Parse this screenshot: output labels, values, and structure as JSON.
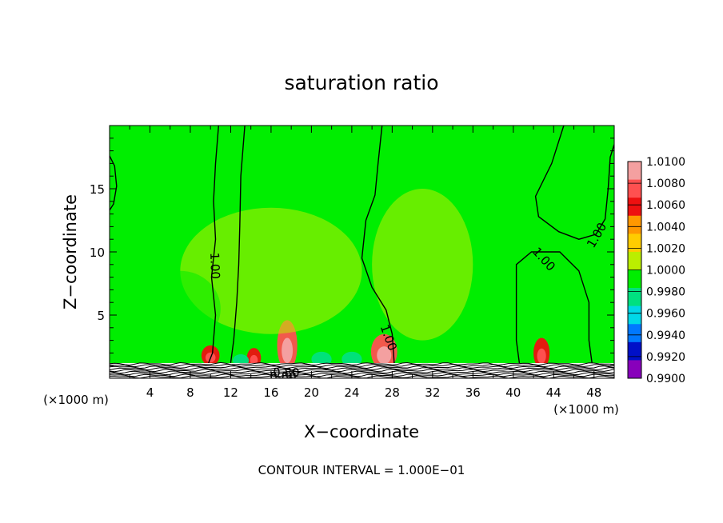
{
  "chart_data": {
    "type": "heatmap",
    "title": "saturation ratio",
    "xlabel": "X−coordinate",
    "ylabel": "Z−coordinate",
    "x_unit_left": "(×1000 m)",
    "x_unit_right": "(×1000 m)",
    "xlim": [
      0,
      50
    ],
    "ylim": [
      0,
      20
    ],
    "xticks": [
      4,
      8,
      12,
      16,
      20,
      24,
      28,
      32,
      36,
      40,
      44,
      48
    ],
    "yticks": [
      5,
      10,
      15
    ],
    "footer": "CONTOUR INTERVAL = 1.000E−01",
    "colorbar": {
      "levels": [
        "1.0100",
        "1.0080",
        "1.0060",
        "1.0040",
        "1.0020",
        "1.0000",
        "0.9980",
        "0.9960",
        "0.9940",
        "0.9920",
        "0.9900"
      ],
      "colors": [
        "#f4a0a0",
        "#ff5050",
        "#ee1010",
        "#ff9800",
        "#ffcc00",
        "#bbee00",
        "#00ee00",
        "#00e080",
        "#00d8e8",
        "#0078ff",
        "#0010c8",
        "#8800bb"
      ]
    },
    "contour_labels": [
      {
        "text": "1.00",
        "x": 10.4,
        "z": 8.9,
        "angle": 88
      },
      {
        "text": "1.00",
        "x": 27.6,
        "z": 3.2,
        "angle": 70
      },
      {
        "text": "1.00",
        "x": 43.0,
        "z": 9.4,
        "angle": 48
      },
      {
        "text": "1.00",
        "x": 48.3,
        "z": 11.3,
        "angle": -60
      },
      {
        "text": "0.80",
        "x": 17.5,
        "z": 0.4,
        "angle": 0
      },
      {
        "text": "0.80",
        "x": 17.2,
        "z": 0.1,
        "angle": 0
      }
    ],
    "contours": [
      [
        [
          10.8,
          20
        ],
        [
          10.5,
          17
        ],
        [
          10.3,
          14
        ],
        [
          10.5,
          11
        ],
        [
          10.1,
          8
        ],
        [
          10.5,
          5
        ],
        [
          10.2,
          2
        ],
        [
          9.8,
          1.2
        ]
      ],
      [
        [
          12.0,
          1.2
        ],
        [
          12.3,
          3
        ],
        [
          12.6,
          6
        ],
        [
          12.8,
          9
        ],
        [
          12.9,
          12
        ],
        [
          13.0,
          16
        ],
        [
          13.4,
          20
        ]
      ],
      [
        [
          27.0,
          20
        ],
        [
          26.6,
          17
        ],
        [
          26.3,
          14.5
        ],
        [
          25.4,
          12.5
        ],
        [
          25.0,
          9.5
        ],
        [
          26.0,
          7.2
        ],
        [
          27.4,
          5.4
        ],
        [
          28.0,
          3.5
        ],
        [
          28.2,
          1.2
        ]
      ],
      [
        [
          45.0,
          20
        ],
        [
          43.8,
          17
        ],
        [
          42.2,
          14.4
        ],
        [
          42.5,
          12.8
        ],
        [
          44.5,
          11.6
        ],
        [
          46.5,
          11.0
        ],
        [
          48.2,
          11.4
        ],
        [
          49.1,
          12.6
        ],
        [
          49.4,
          15
        ],
        [
          49.6,
          17.5
        ],
        [
          50,
          18.5
        ]
      ],
      [
        [
          47.8,
          1.2
        ],
        [
          47.5,
          3
        ],
        [
          47.5,
          6
        ],
        [
          46.5,
          8.5
        ],
        [
          44.6,
          10.0
        ],
        [
          41.8,
          10.0
        ],
        [
          40.3,
          9.0
        ],
        [
          40.3,
          6
        ],
        [
          40.3,
          3
        ],
        [
          40.6,
          1.2
        ]
      ],
      [
        [
          0,
          17.6
        ],
        [
          0.5,
          16.8
        ],
        [
          0.7,
          15.2
        ],
        [
          0.4,
          13.8
        ],
        [
          0,
          13.3
        ]
      ]
    ],
    "features": [
      {
        "x": 10.0,
        "z": 1.8,
        "rx": 0.9,
        "rz": 0.8,
        "v": 1.006
      },
      {
        "x": 14.3,
        "z": 1.6,
        "rx": 0.7,
        "rz": 0.8,
        "v": 1.006
      },
      {
        "x": 17.6,
        "z": 2.6,
        "rx": 1.0,
        "rz": 2.0,
        "v": 1.008
      },
      {
        "x": 27.2,
        "z": 2.1,
        "rx": 1.3,
        "rz": 1.4,
        "v": 1.008
      },
      {
        "x": 42.8,
        "z": 2.0,
        "rx": 0.8,
        "rz": 1.2,
        "v": 1.006
      },
      {
        "x": 16.0,
        "z": 8.5,
        "rx": 9.0,
        "rz": 5.0,
        "v": 1.001
      },
      {
        "x": 31.0,
        "z": 9.0,
        "rx": 5.0,
        "rz": 6.0,
        "v": 1.001
      },
      {
        "x": 7.0,
        "z": 5.5,
        "rx": 4.0,
        "rz": 3.0,
        "v": 0.9985
      },
      {
        "x": 21.0,
        "z": 1.5,
        "rx": 1.0,
        "rz": 0.6,
        "v": 0.996
      },
      {
        "x": 24.0,
        "z": 1.5,
        "rx": 1.0,
        "rz": 0.6,
        "v": 0.996
      },
      {
        "x": 13.0,
        "z": 1.4,
        "rx": 0.8,
        "rz": 0.5,
        "v": 0.996
      }
    ]
  }
}
